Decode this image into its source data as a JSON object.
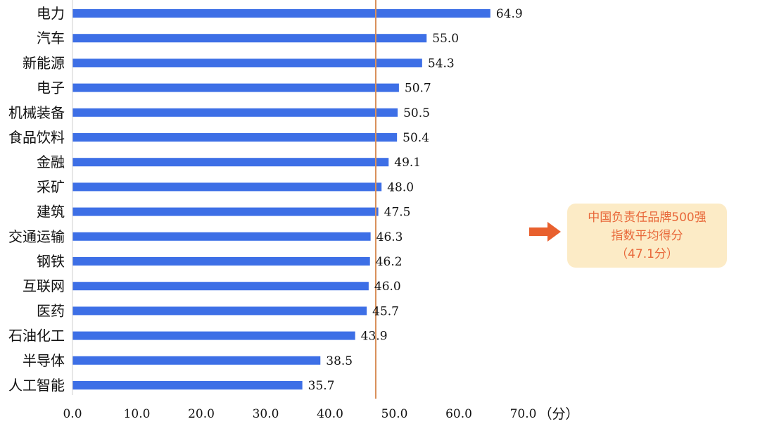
{
  "chart_data": {
    "type": "bar",
    "orientation": "horizontal",
    "categories": [
      "电力",
      "汽车",
      "新能源",
      "电子",
      "机械装备",
      "食品饮料",
      "金融",
      "采矿",
      "建筑",
      "交通运输",
      "钢铁",
      "互联网",
      "医药",
      "石油化工",
      "半导体",
      "人工智能"
    ],
    "values": [
      64.9,
      55.0,
      54.3,
      50.7,
      50.5,
      50.4,
      49.1,
      48.0,
      47.5,
      46.3,
      46.2,
      46.0,
      45.7,
      43.9,
      38.5,
      35.7
    ],
    "value_labels": [
      "64.9",
      "55.0",
      "54.3",
      "50.7",
      "50.5",
      "50.4",
      "49.1",
      "48.0",
      "47.5",
      "46.3",
      "46.2",
      "46.0",
      "45.7",
      "43.9",
      "38.5",
      "35.7"
    ],
    "xlim": [
      0,
      70
    ],
    "x_ticks": [
      "0.0",
      "10.0",
      "20.0",
      "30.0",
      "40.0",
      "50.0",
      "60.0",
      "70.0"
    ],
    "x_unit": "（分）",
    "reference_line": {
      "value": 47.1
    },
    "callout": {
      "lines": [
        "中国负责任品牌500强",
        "指数平均得分",
        "（47.1分）"
      ]
    },
    "grid": false,
    "legend": "none",
    "colors": {
      "bar": "#3d6fe6",
      "reference_line": "#d9905a",
      "callout_bg": "#fcebc6",
      "callout_text": "#e8683a",
      "arrow": "#e8602e"
    }
  }
}
